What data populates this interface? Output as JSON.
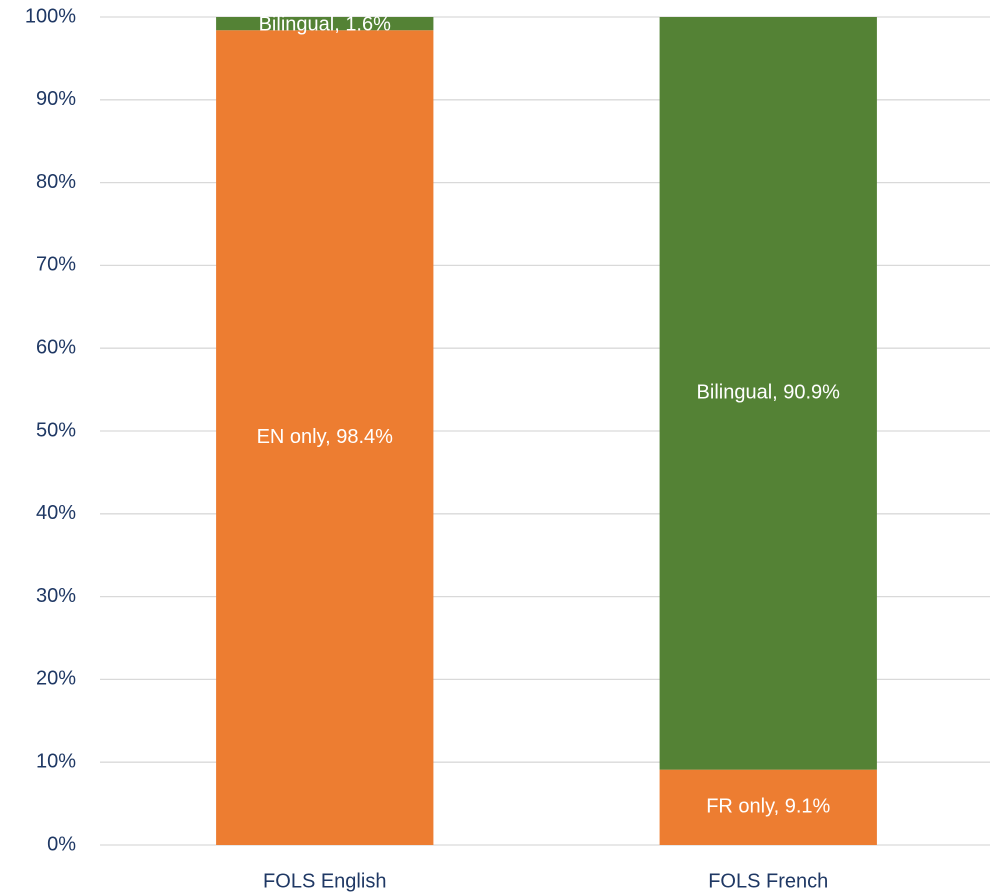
{
  "chart_data": {
    "type": "stacked_bar",
    "categories": [
      "FOLS English",
      "FOLS French"
    ],
    "series": [
      {
        "name": "EN only",
        "color": "#ed7d31",
        "values": [
          98.4,
          null
        ],
        "value_labels": [
          "EN only, 98.4%",
          null
        ]
      },
      {
        "name": "FR only",
        "color": "#ed7d31",
        "values": [
          null,
          9.1
        ],
        "value_labels": [
          null,
          "FR only, 9.1%"
        ]
      },
      {
        "name": "Bilingual",
        "color": "#548235",
        "values": [
          1.6,
          90.9
        ],
        "value_labels": [
          "Bilingual, 1.6%",
          "Bilingual, 90.9%"
        ]
      }
    ],
    "ylim": [
      0,
      100
    ],
    "yticks": [
      {
        "value": 0,
        "label": "0%"
      },
      {
        "value": 10,
        "label": "10%"
      },
      {
        "value": 20,
        "label": "20%"
      },
      {
        "value": 30,
        "label": "30%"
      },
      {
        "value": 40,
        "label": "40%"
      },
      {
        "value": 50,
        "label": "50%"
      },
      {
        "value": 60,
        "label": "60%"
      },
      {
        "value": 70,
        "label": "70%"
      },
      {
        "value": 80,
        "label": "80%"
      },
      {
        "value": 90,
        "label": "90%"
      },
      {
        "value": 100,
        "label": "100%"
      }
    ],
    "grid": true
  }
}
